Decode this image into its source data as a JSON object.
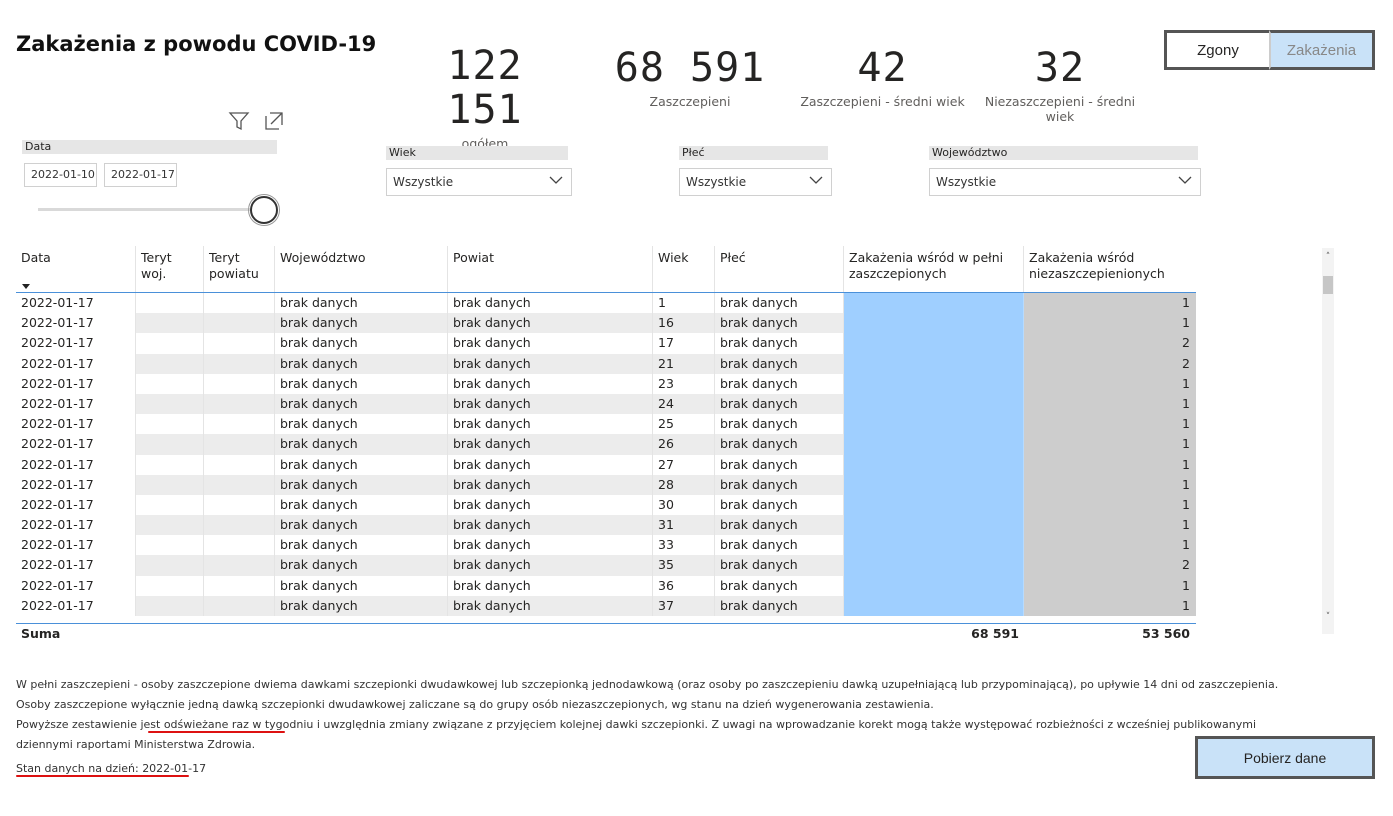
{
  "title": "Zakażenia z powodu COVID-19",
  "kpis": [
    {
      "value": "122 151",
      "label": "ogółem"
    },
    {
      "value": "68 591",
      "label": "Zaszczepieni"
    },
    {
      "value": "42",
      "label": "Zaszczepieni - średni wiek"
    },
    {
      "value": "32",
      "label": "Niezaszczepieni - średni wiek"
    }
  ],
  "toggle": {
    "deaths": "Zgony",
    "infections": "Zakażenia",
    "active": "infections"
  },
  "icons": {
    "filter": "filter-icon",
    "focus": "focus-mode-icon",
    "chevron": "chevron-down-icon"
  },
  "slicers": {
    "date": {
      "label": "Data",
      "from": "2022-01-10",
      "to": "2022-01-17"
    },
    "age": {
      "label": "Wiek",
      "value": "Wszystkie"
    },
    "sex": {
      "label": "Płeć",
      "value": "Wszystkie"
    },
    "voivodeship": {
      "label": "Województwo",
      "value": "Wszystkie"
    }
  },
  "table": {
    "columns": [
      "Data",
      "Teryt woj.",
      "Teryt powiatu",
      "Województwo",
      "Powiat",
      "Wiek",
      "Płeć",
      "Zakażenia wśród w pełni zaszczepionych",
      "Zakażenia wśród niezaszczepienionych"
    ],
    "rows": [
      [
        "2022-01-17",
        "",
        "",
        "brak danych",
        "brak danych",
        "1",
        "brak danych",
        "",
        "1"
      ],
      [
        "2022-01-17",
        "",
        "",
        "brak danych",
        "brak danych",
        "16",
        "brak danych",
        "",
        "1"
      ],
      [
        "2022-01-17",
        "",
        "",
        "brak danych",
        "brak danych",
        "17",
        "brak danych",
        "",
        "2"
      ],
      [
        "2022-01-17",
        "",
        "",
        "brak danych",
        "brak danych",
        "21",
        "brak danych",
        "",
        "2"
      ],
      [
        "2022-01-17",
        "",
        "",
        "brak danych",
        "brak danych",
        "23",
        "brak danych",
        "",
        "1"
      ],
      [
        "2022-01-17",
        "",
        "",
        "brak danych",
        "brak danych",
        "24",
        "brak danych",
        "",
        "1"
      ],
      [
        "2022-01-17",
        "",
        "",
        "brak danych",
        "brak danych",
        "25",
        "brak danych",
        "",
        "1"
      ],
      [
        "2022-01-17",
        "",
        "",
        "brak danych",
        "brak danych",
        "26",
        "brak danych",
        "",
        "1"
      ],
      [
        "2022-01-17",
        "",
        "",
        "brak danych",
        "brak danych",
        "27",
        "brak danych",
        "",
        "1"
      ],
      [
        "2022-01-17",
        "",
        "",
        "brak danych",
        "brak danych",
        "28",
        "brak danych",
        "",
        "1"
      ],
      [
        "2022-01-17",
        "",
        "",
        "brak danych",
        "brak danych",
        "30",
        "brak danych",
        "",
        "1"
      ],
      [
        "2022-01-17",
        "",
        "",
        "brak danych",
        "brak danych",
        "31",
        "brak danych",
        "",
        "1"
      ],
      [
        "2022-01-17",
        "",
        "",
        "brak danych",
        "brak danych",
        "33",
        "brak danych",
        "",
        "1"
      ],
      [
        "2022-01-17",
        "",
        "",
        "brak danych",
        "brak danych",
        "35",
        "brak danych",
        "",
        "2"
      ],
      [
        "2022-01-17",
        "",
        "",
        "brak danych",
        "brak danych",
        "36",
        "brak danych",
        "",
        "1"
      ],
      [
        "2022-01-17",
        "",
        "",
        "brak danych",
        "brak danych",
        "37",
        "brak danych",
        "",
        "1"
      ]
    ],
    "total": {
      "label": "Suma",
      "vaccinated": "68 591",
      "unvaccinated": "53 560"
    }
  },
  "notes": {
    "line1": "W pełni zaszczepieni - osoby zaszczepione dwiema dawkami szczepionki dwudawkowej lub szczepionką jednodawkową (oraz osoby po zaszczepieniu dawką uzupełniającą lub przypominającą), po upływie 14 dni od zaszczepienia.",
    "line2": "Osoby zaszczepione wyłącznie jedną dawką szczepionki dwudawkowej zaliczane są do grupy osób niezaszczepionych, wg stanu na dzień wygenerowania zestawienia.",
    "line3": "Powyższe zestawienie jest odświeżane raz w tygodniu i uwzględnia zmiany związane z przyjęciem kolejnej dawki szczepionki. Z uwagi na wprowadzanie korekt mogą także występować rozbieżności z wcześniej publikowanymi",
    "line4": "dziennymi raportami Ministerstwa Zdrowia.",
    "status": "Stan danych na dzień: 2022-01-17"
  },
  "download_label": "Pobierz dane",
  "colors": {
    "vaccinated": "#9fcfff",
    "unvaccinated": "#cdcdcd",
    "accent_toggle": "#c9e2f8",
    "underline": "#dd1111"
  }
}
